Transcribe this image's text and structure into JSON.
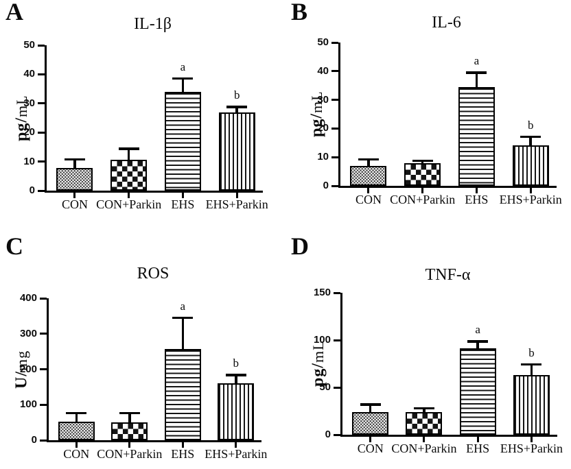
{
  "figure": {
    "background": "#ffffff",
    "ink_color": "#000000",
    "groups": [
      "CON",
      "CON+Parkin",
      "EHS",
      "EHS+Parkin"
    ],
    "bar_patterns": [
      "stipple-dots",
      "checkerboard",
      "horizontal-lines",
      "vertical-lines"
    ]
  },
  "chart_data": [
    {
      "type": "bar",
      "panel_letter": "A",
      "title": "IL-1β",
      "xlabel": "",
      "ylabel": "pg/mL",
      "ylim": [
        0,
        50
      ],
      "yticks": [
        0,
        10,
        20,
        30,
        40,
        50
      ],
      "grid": false,
      "legend": false,
      "categories": [
        "CON",
        "CON+Parkin",
        "EHS",
        "EHS+Parkin"
      ],
      "values": [
        7.7,
        10.7,
        34,
        27
      ],
      "errors_sd": [
        3.5,
        4.1,
        5,
        2.2
      ],
      "significance": [
        "",
        "",
        "a",
        "b"
      ],
      "patterns": [
        "stipple-dots",
        "checkerboard",
        "horizontal-lines",
        "vertical-lines"
      ]
    },
    {
      "type": "bar",
      "panel_letter": "B",
      "title": "IL-6",
      "xlabel": "",
      "ylabel": "pg/mL",
      "ylim": [
        0,
        50
      ],
      "yticks": [
        0,
        10,
        20,
        30,
        40,
        50
      ],
      "grid": false,
      "legend": false,
      "categories": [
        "CON",
        "CON+Parkin",
        "EHS",
        "EHS+Parkin"
      ],
      "values": [
        6.9,
        7.9,
        34.4,
        14.2
      ],
      "errors_sd": [
        2.7,
        1.2,
        5.5,
        3.3
      ],
      "significance": [
        "",
        "",
        "a",
        "b"
      ],
      "patterns": [
        "stipple-dots",
        "checkerboard",
        "horizontal-lines",
        "vertical-lines"
      ]
    },
    {
      "type": "bar",
      "panel_letter": "C",
      "title": "ROS",
      "xlabel": "",
      "ylabel": "U/mg",
      "ylim": [
        0,
        400
      ],
      "yticks": [
        0,
        100,
        200,
        300,
        400
      ],
      "grid": false,
      "legend": false,
      "categories": [
        "CON",
        "CON+Parkin",
        "EHS",
        "EHS+Parkin"
      ],
      "values": [
        52,
        50,
        258,
        160
      ],
      "errors_sd": [
        28,
        30,
        90,
        27
      ],
      "significance": [
        "",
        "",
        "a",
        "b"
      ],
      "patterns": [
        "stipple-dots",
        "checkerboard",
        "horizontal-lines",
        "vertical-lines"
      ]
    },
    {
      "type": "bar",
      "panel_letter": "D",
      "title": "TNF-α",
      "xlabel": "",
      "ylabel": "pg/mL",
      "ylim": [
        0,
        150
      ],
      "yticks": [
        0,
        50,
        100,
        150
      ],
      "grid": false,
      "legend": false,
      "categories": [
        "CON",
        "CON+Parkin",
        "EHS",
        "EHS+Parkin"
      ],
      "values": [
        24,
        24,
        91,
        63
      ],
      "errors_sd": [
        9,
        5,
        9,
        12.5
      ],
      "significance": [
        "",
        "",
        "a",
        "b"
      ],
      "patterns": [
        "stipple-dots",
        "checkerboard",
        "horizontal-lines",
        "vertical-lines"
      ]
    }
  ]
}
